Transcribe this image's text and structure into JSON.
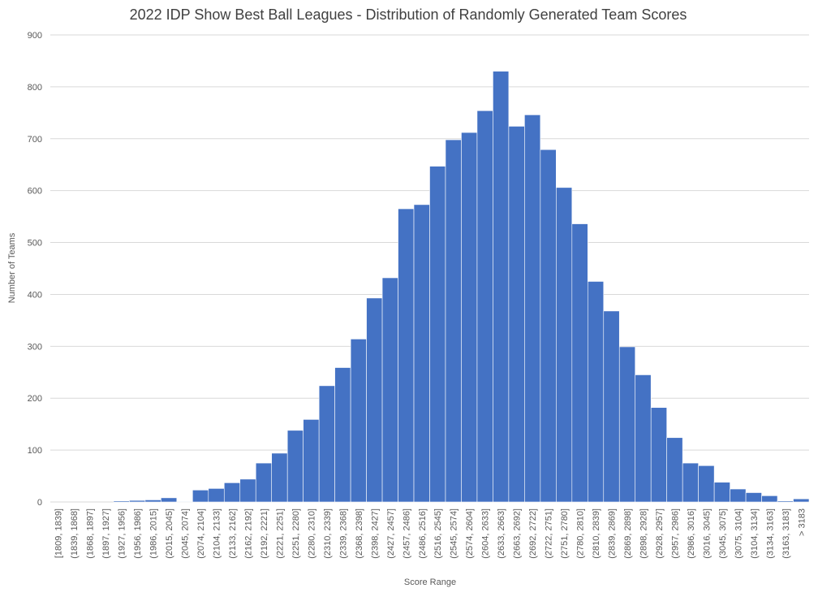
{
  "chart_data": {
    "type": "bar",
    "title": "2022 IDP Show Best Ball Leagues - Distribution of Randomly Generated Team Scores",
    "xlabel": "Score Range",
    "ylabel": "Number of Teams",
    "ylim": [
      0,
      900
    ],
    "yticks": [
      "0",
      "100",
      "200",
      "300",
      "400",
      "500",
      "600",
      "700",
      "800",
      "900"
    ],
    "grid": true,
    "bar_color": "#4472C4",
    "categories": [
      "[1809, 1839]",
      "(1839, 1868]",
      "(1868, 1897]",
      "(1897, 1927]",
      "(1927, 1956]",
      "(1956, 1986]",
      "(1986, 2015]",
      "(2015, 2045]",
      "(2045, 2074]",
      "(2074, 2104]",
      "(2104, 2133]",
      "(2133, 2162]",
      "(2162, 2192]",
      "(2192, 2221]",
      "(2221, 2251]",
      "(2251, 2280]",
      "(2280, 2310]",
      "(2310, 2339]",
      "(2339, 2368]",
      "(2368, 2398]",
      "(2398, 2427]",
      "(2427, 2457]",
      "(2457, 2486]",
      "(2486, 2516]",
      "(2516, 2545]",
      "(2545, 2574]",
      "(2574, 2604]",
      "(2604, 2633]",
      "(2633, 2663]",
      "(2663, 2692]",
      "(2692, 2722]",
      "(2722, 2751]",
      "(2751, 2780]",
      "(2780, 2810]",
      "(2810, 2839]",
      "(2839, 2869]",
      "(2869, 2898]",
      "(2898, 2928]",
      "(2928, 2957]",
      "(2957, 2986]",
      "(2986, 3016]",
      "(3016, 3045]",
      "(3045, 3075]",
      "(3075, 3104]",
      "(3104, 3134]",
      "(3134, 3163]",
      "(3163, 3183]",
      "> 3183"
    ],
    "values": [
      0,
      0,
      0,
      0,
      2,
      3,
      4,
      8,
      1,
      23,
      26,
      37,
      44,
      75,
      94,
      138,
      159,
      224,
      259,
      314,
      393,
      432,
      565,
      573,
      647,
      698,
      712,
      754,
      830,
      724,
      746,
      679,
      606,
      536,
      425,
      368,
      299,
      245,
      182,
      124,
      75,
      70,
      38,
      25,
      18,
      12,
      2,
      6
    ]
  }
}
